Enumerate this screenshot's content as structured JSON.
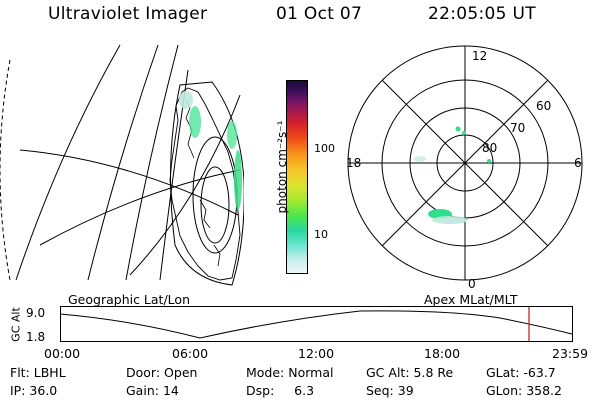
{
  "header": {
    "title": "Ultraviolet Imager",
    "date": "01 Oct 07",
    "time": "22:05:05 UT"
  },
  "colorbar": {
    "unit": "photon cm⁻²s⁻¹",
    "ticks": [
      "100",
      "10"
    ]
  },
  "polar_plot": {
    "mlt_labels": {
      "top": "12",
      "left": "18",
      "right": "6",
      "bottom": "0"
    },
    "lat_labels": [
      "60",
      "70",
      "80"
    ]
  },
  "panel_labels": {
    "left": "Geographic Lat/Lon",
    "right": "Apex MLat/MLT"
  },
  "altitude_plot": {
    "ylabel": "GC Alt",
    "y_ticks": [
      "9.0",
      "1.8"
    ],
    "x_ticks": [
      "00:00",
      "06:00",
      "12:00",
      "18:00",
      "23:59"
    ]
  },
  "info": {
    "row1": [
      {
        "label": "Flt:",
        "value": "LBHL"
      },
      {
        "label": "Door:",
        "value": "Open"
      },
      {
        "label": "Mode:",
        "value": "Normal"
      },
      {
        "label": "GC Alt:",
        "value": "5.8 Re"
      },
      {
        "label": "GLat:",
        "value": "-63.7"
      }
    ],
    "row2": [
      {
        "label": "IP:",
        "value": "36.0"
      },
      {
        "label": "Gain:",
        "value": "14"
      },
      {
        "label": "Dsp:",
        "value": "6.3"
      },
      {
        "label": "Seq:",
        "value": "39"
      },
      {
        "label": "GLon:",
        "value": "358.2"
      }
    ]
  },
  "colors": {
    "current_time_marker": "#c62828",
    "bright": "#2ee87a",
    "dim": "#b8eadd",
    "line": "#000000"
  }
}
